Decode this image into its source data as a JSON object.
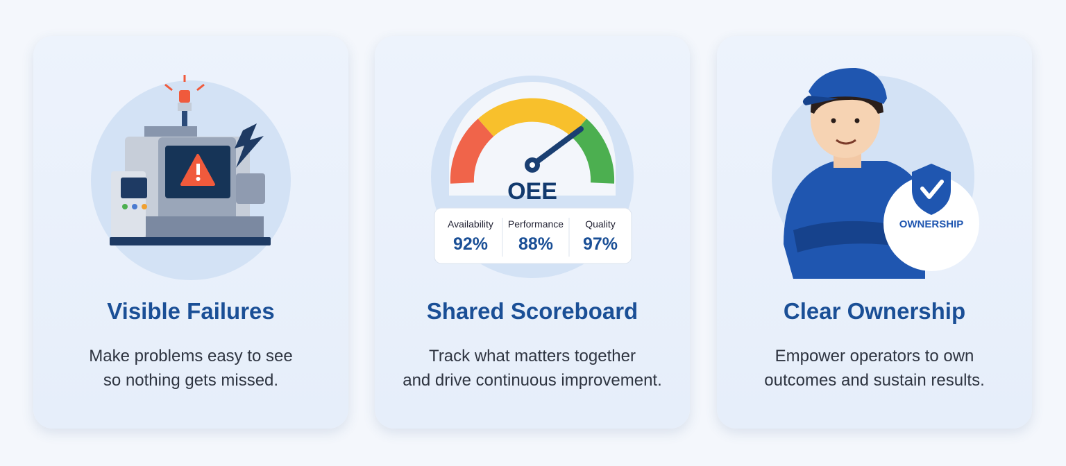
{
  "cards": [
    {
      "title": "Visible Failures",
      "description": [
        "Make problems easy to see",
        "so nothing gets missed."
      ]
    },
    {
      "title": "Shared Scoreboard",
      "description": [
        "Track what matters together",
        "and drive continuous improvement."
      ],
      "gauge": {
        "label": "OEE",
        "metrics": [
          {
            "name": "Availability",
            "value": "92%"
          },
          {
            "name": "Performance",
            "value": "88%"
          },
          {
            "name": "Quality",
            "value": "97%"
          }
        ]
      }
    },
    {
      "title": "Clear Ownership",
      "description": [
        "Empower operators to own",
        "outcomes and sustain results."
      ],
      "badge": "OWNERSHIP"
    }
  ]
}
